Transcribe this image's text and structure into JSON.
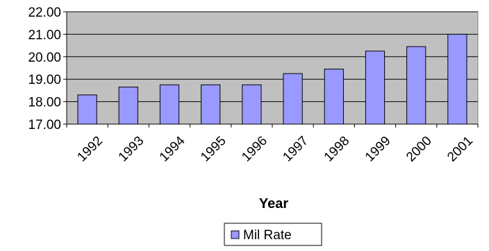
{
  "chart_data": {
    "type": "bar",
    "title": "",
    "xlabel": "Year",
    "ylabel": "",
    "categories": [
      "1992",
      "1993",
      "1994",
      "1995",
      "1996",
      "1997",
      "1998",
      "1999",
      "2000",
      "2001"
    ],
    "series": [
      {
        "name": "Mil Rate",
        "values": [
          18.3,
          18.65,
          18.75,
          18.75,
          18.75,
          19.25,
          19.45,
          20.25,
          20.45,
          21.0
        ],
        "color": "#9999ff"
      }
    ],
    "ylim": [
      17.0,
      22.0
    ],
    "yticks": [
      "17.00",
      "18.00",
      "19.00",
      "20.00",
      "21.00",
      "22.00"
    ],
    "grid": true,
    "legend_position": "bottom",
    "plot_background": "#c0c0c0"
  }
}
